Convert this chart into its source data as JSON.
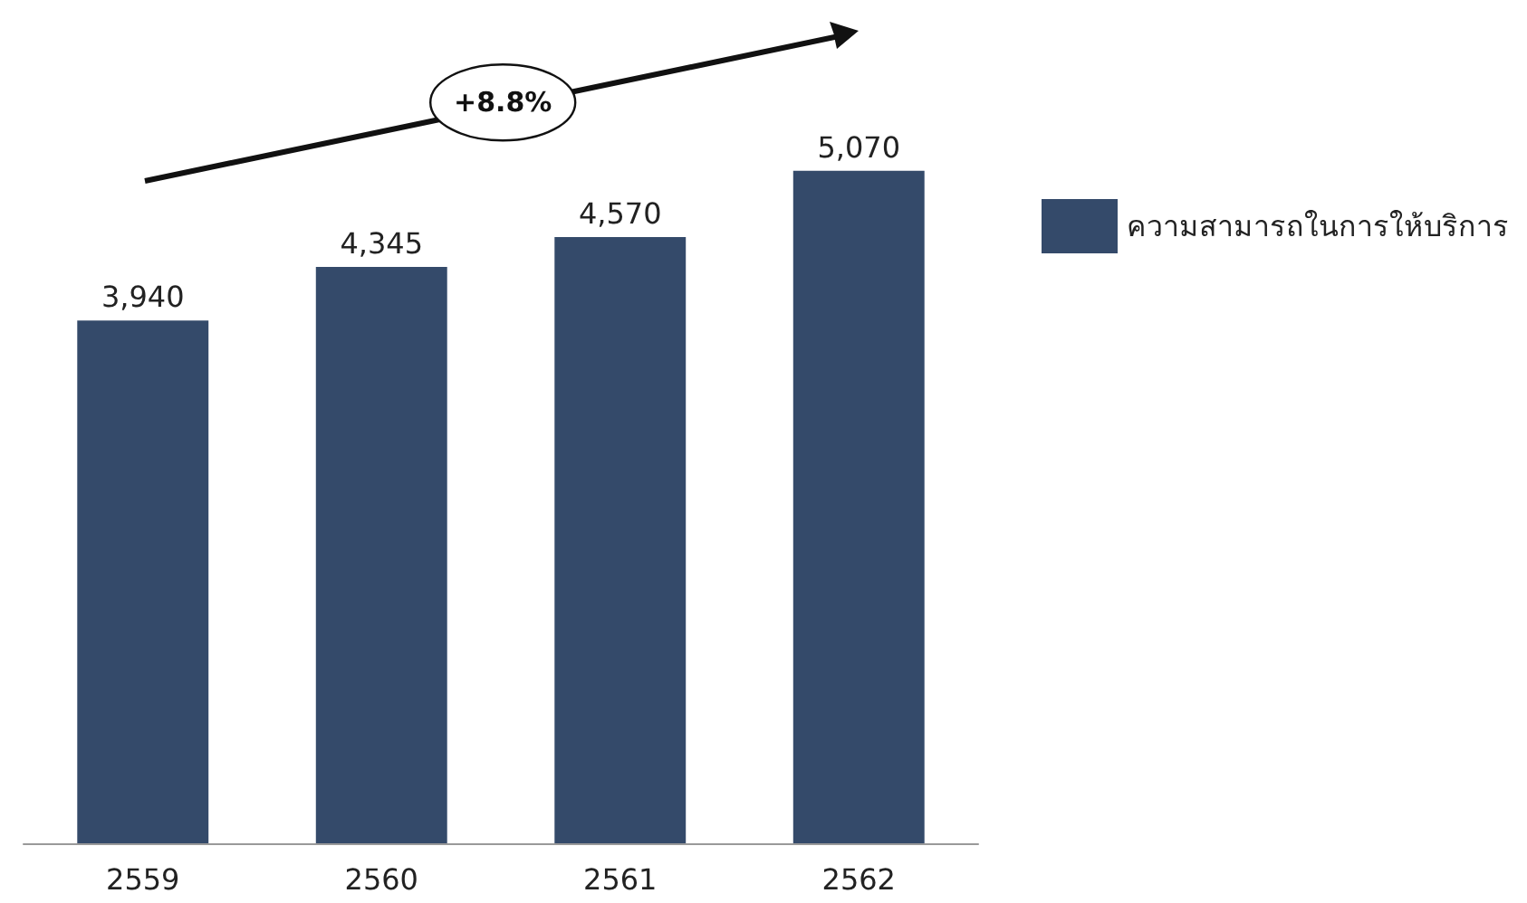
{
  "chart_data": {
    "type": "bar",
    "categories": [
      "2559",
      "2560",
      "2561",
      "2562"
    ],
    "series": [
      {
        "name": "ความสามารถในการให้บริการ",
        "color": "#344a6a",
        "values": [
          3940,
          4345,
          4570,
          5070
        ],
        "value_labels": [
          "3,940",
          "4,345",
          "4,570",
          "5,070"
        ]
      }
    ],
    "legend": "right",
    "grid": false,
    "annotations": [
      "+8.8%"
    ]
  }
}
